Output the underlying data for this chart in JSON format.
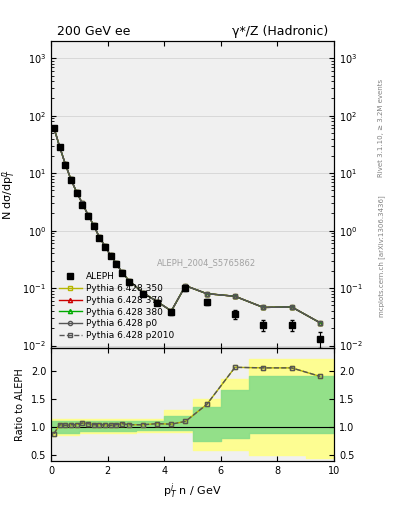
{
  "title_left": "200 GeV ee",
  "title_right": "γ*/Z (Hadronic)",
  "ylabel_main": "N dσ/dp$_T^n$",
  "ylabel_ratio": "Ratio to ALEPH",
  "xlabel": "p$_T^i$ n / GeV",
  "watermark": "ALEPH_2004_S5765862",
  "right_label_top": "Rivet 3.1.10, ≥ 3.2M events",
  "right_label_bot": "mcplots.cern.ch [arXiv:1306.3436]",
  "aleph_x": [
    0.1,
    0.3,
    0.5,
    0.7,
    0.9,
    1.1,
    1.3,
    1.5,
    1.7,
    1.9,
    2.1,
    2.3,
    2.5,
    2.75,
    3.25,
    3.75,
    4.25,
    4.75,
    5.5,
    6.5,
    7.5,
    8.5,
    9.5
  ],
  "aleph_y": [
    60.0,
    28.0,
    14.0,
    7.5,
    4.5,
    2.8,
    1.8,
    1.2,
    0.75,
    0.52,
    0.36,
    0.26,
    0.18,
    0.13,
    0.08,
    0.055,
    0.038,
    0.1,
    0.057,
    0.035,
    0.023,
    0.023,
    0.013
  ],
  "aleph_yerr": [
    3.0,
    1.5,
    0.8,
    0.4,
    0.25,
    0.15,
    0.1,
    0.07,
    0.045,
    0.03,
    0.02,
    0.015,
    0.012,
    0.009,
    0.006,
    0.005,
    0.004,
    0.01,
    0.007,
    0.006,
    0.005,
    0.005,
    0.004
  ],
  "py350_x": [
    0.1,
    0.3,
    0.5,
    0.7,
    0.9,
    1.1,
    1.3,
    1.5,
    1.7,
    1.9,
    2.1,
    2.3,
    2.5,
    2.75,
    3.25,
    3.75,
    4.25,
    4.75,
    5.5,
    6.5,
    7.5,
    8.5,
    9.5
  ],
  "py350_y": [
    62.0,
    29.0,
    14.5,
    7.8,
    4.7,
    3.0,
    1.9,
    1.25,
    0.78,
    0.54,
    0.37,
    0.27,
    0.19,
    0.135,
    0.083,
    0.058,
    0.04,
    0.11,
    0.08,
    0.072,
    0.046,
    0.047,
    0.025
  ],
  "py350_color": "#b5b500",
  "py350_ecolor": "#b5b500",
  "py370_x": [
    0.1,
    0.3,
    0.5,
    0.7,
    0.9,
    1.1,
    1.3,
    1.5,
    1.7,
    1.9,
    2.1,
    2.3,
    2.5,
    2.75,
    3.25,
    3.75,
    4.25,
    4.75,
    5.5,
    6.5,
    7.5,
    8.5,
    9.5
  ],
  "py370_y": [
    62.0,
    29.0,
    14.5,
    7.8,
    4.7,
    3.0,
    1.9,
    1.25,
    0.78,
    0.54,
    0.37,
    0.27,
    0.19,
    0.135,
    0.083,
    0.058,
    0.04,
    0.11,
    0.08,
    0.072,
    0.046,
    0.047,
    0.025
  ],
  "py370_color": "#cc0000",
  "py380_x": [
    0.1,
    0.3,
    0.5,
    0.7,
    0.9,
    1.1,
    1.3,
    1.5,
    1.7,
    1.9,
    2.1,
    2.3,
    2.5,
    2.75,
    3.25,
    3.75,
    4.25,
    4.75,
    5.5,
    6.5,
    7.5,
    8.5,
    9.5
  ],
  "py380_y": [
    62.0,
    29.0,
    14.5,
    7.8,
    4.7,
    3.0,
    1.9,
    1.25,
    0.78,
    0.54,
    0.37,
    0.27,
    0.19,
    0.135,
    0.083,
    0.058,
    0.04,
    0.11,
    0.08,
    0.072,
    0.046,
    0.047,
    0.025
  ],
  "py380_color": "#00aa00",
  "pyp0_x": [
    0.1,
    0.3,
    0.5,
    0.7,
    0.9,
    1.1,
    1.3,
    1.5,
    1.7,
    1.9,
    2.1,
    2.3,
    2.5,
    2.75,
    3.25,
    3.75,
    4.25,
    4.75,
    5.5,
    6.5,
    7.5,
    8.5,
    9.5
  ],
  "pyp0_y": [
    62.0,
    29.0,
    14.5,
    7.8,
    4.7,
    3.0,
    1.9,
    1.25,
    0.78,
    0.54,
    0.37,
    0.27,
    0.19,
    0.135,
    0.083,
    0.058,
    0.04,
    0.11,
    0.08,
    0.072,
    0.046,
    0.047,
    0.025
  ],
  "pyp0_color": "#555555",
  "pyp2010_x": [
    0.1,
    0.3,
    0.5,
    0.7,
    0.9,
    1.1,
    1.3,
    1.5,
    1.7,
    1.9,
    2.1,
    2.3,
    2.5,
    2.75,
    3.25,
    3.75,
    4.25,
    4.75,
    5.5,
    6.5,
    7.5,
    8.5,
    9.5
  ],
  "pyp2010_y": [
    62.0,
    29.0,
    14.5,
    7.8,
    4.7,
    3.0,
    1.9,
    1.25,
    0.78,
    0.54,
    0.37,
    0.27,
    0.19,
    0.135,
    0.083,
    0.058,
    0.04,
    0.11,
    0.08,
    0.072,
    0.046,
    0.047,
    0.025
  ],
  "pyp2010_color": "#555555",
  "ratio_350_x": [
    0.1,
    0.3,
    0.5,
    0.7,
    0.9,
    1.1,
    1.3,
    1.5,
    1.7,
    1.9,
    2.1,
    2.3,
    2.5,
    2.75,
    3.25,
    3.75,
    4.25,
    4.75,
    5.5,
    6.5,
    7.5,
    8.5,
    9.5
  ],
  "ratio_350_y": [
    0.88,
    1.04,
    1.03,
    1.04,
    1.04,
    1.07,
    1.06,
    1.04,
    1.04,
    1.04,
    1.03,
    1.04,
    1.06,
    1.04,
    1.04,
    1.06,
    1.05,
    1.1,
    1.4,
    2.06,
    2.05,
    2.05,
    1.9
  ],
  "ratio_p2010_x": [
    0.1,
    0.3,
    0.5,
    0.7,
    0.9,
    1.1,
    1.3,
    1.5,
    1.7,
    1.9,
    2.1,
    2.3,
    2.5,
    2.75,
    3.25,
    3.75,
    4.25,
    4.75,
    5.5,
    6.5,
    7.5,
    8.5,
    9.5
  ],
  "ratio_p2010_y": [
    0.88,
    1.04,
    1.03,
    1.04,
    1.04,
    1.07,
    1.06,
    1.04,
    1.04,
    1.04,
    1.03,
    1.04,
    1.06,
    1.04,
    1.04,
    1.06,
    1.05,
    1.1,
    1.4,
    2.06,
    2.05,
    2.05,
    1.9
  ],
  "band_yellow_x": [
    0.0,
    1.0,
    2.0,
    3.0,
    4.0,
    5.0,
    6.0,
    7.0,
    8.0,
    9.0,
    10.0
  ],
  "band_yellow_lo": [
    0.85,
    0.9,
    0.9,
    0.92,
    0.92,
    0.6,
    0.6,
    0.5,
    0.5,
    0.45,
    0.45
  ],
  "band_yellow_hi": [
    1.15,
    1.15,
    1.15,
    1.15,
    1.3,
    1.5,
    1.85,
    2.2,
    2.2,
    2.2,
    2.2
  ],
  "band_green_x": [
    0.0,
    1.0,
    2.0,
    3.0,
    4.0,
    5.0,
    6.0,
    7.0,
    8.0,
    9.0,
    10.0
  ],
  "band_green_lo": [
    0.9,
    0.93,
    0.93,
    0.95,
    0.95,
    0.75,
    0.8,
    0.9,
    0.9,
    0.9,
    0.9
  ],
  "band_green_hi": [
    1.1,
    1.1,
    1.1,
    1.1,
    1.2,
    1.35,
    1.65,
    1.9,
    1.9,
    1.9,
    1.9
  ],
  "xlim": [
    0,
    10
  ],
  "ylim_main": [
    0.009,
    2000
  ],
  "ylim_ratio": [
    0.4,
    2.4
  ],
  "ratio_yticks": [
    0.5,
    1.0,
    1.5,
    2.0
  ],
  "bg_color": "#f0f0f0"
}
